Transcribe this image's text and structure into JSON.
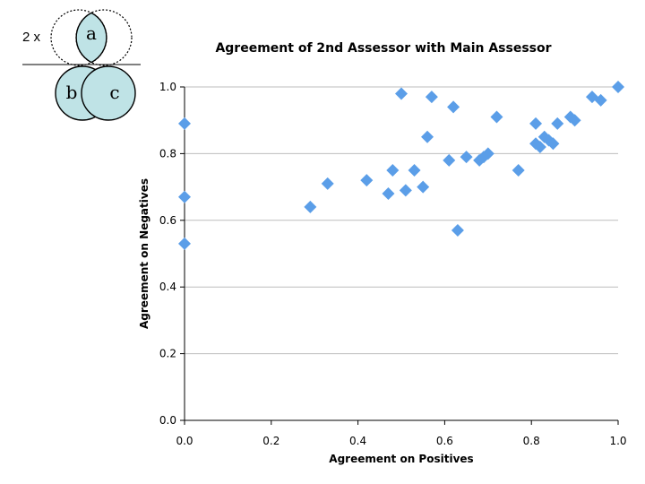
{
  "formula": {
    "coefficient": "2 x",
    "numerator_label": "a",
    "denominator_labels": [
      "b",
      "c"
    ]
  },
  "colors": {
    "marker": "#5b9ee8",
    "venn_fill": "#bfe3e6",
    "grid": "#bdbdbd"
  },
  "chart_data": {
    "type": "scatter",
    "title": "Agreement of 2nd Assessor with Main Assessor",
    "xlabel": "Agreement on Positives",
    "ylabel": "Agreement on Negatives",
    "xlim": [
      0,
      1
    ],
    "ylim": [
      0,
      1
    ],
    "xticks": [
      "0.0",
      "0.2",
      "0.4",
      "0.6",
      "0.8",
      "1.0"
    ],
    "yticks": [
      "0.0",
      "0.2",
      "0.4",
      "0.6",
      "0.8",
      "1.0"
    ],
    "grid": "horizontal",
    "marker": "diamond",
    "series": [
      {
        "points": [
          [
            0.0,
            0.89
          ],
          [
            0.0,
            0.67
          ],
          [
            0.0,
            0.53
          ],
          [
            0.29,
            0.64
          ],
          [
            0.33,
            0.71
          ],
          [
            0.42,
            0.72
          ],
          [
            0.47,
            0.68
          ],
          [
            0.48,
            0.75
          ],
          [
            0.5,
            0.98
          ],
          [
            0.51,
            0.69
          ],
          [
            0.53,
            0.75
          ],
          [
            0.55,
            0.7
          ],
          [
            0.56,
            0.85
          ],
          [
            0.57,
            0.97
          ],
          [
            0.61,
            0.78
          ],
          [
            0.62,
            0.94
          ],
          [
            0.63,
            0.57
          ],
          [
            0.65,
            0.79
          ],
          [
            0.68,
            0.78
          ],
          [
            0.69,
            0.79
          ],
          [
            0.7,
            0.8
          ],
          [
            0.72,
            0.91
          ],
          [
            0.77,
            0.75
          ],
          [
            0.81,
            0.89
          ],
          [
            0.81,
            0.83
          ],
          [
            0.82,
            0.82
          ],
          [
            0.83,
            0.85
          ],
          [
            0.84,
            0.84
          ],
          [
            0.85,
            0.83
          ],
          [
            0.86,
            0.89
          ],
          [
            0.89,
            0.91
          ],
          [
            0.9,
            0.9
          ],
          [
            0.94,
            0.97
          ],
          [
            0.96,
            0.96
          ],
          [
            1.0,
            1.0
          ]
        ]
      }
    ]
  }
}
